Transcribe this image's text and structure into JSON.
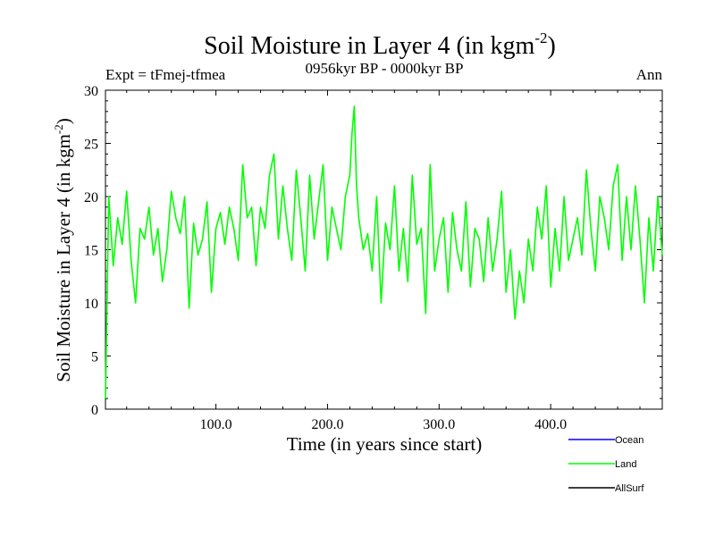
{
  "chart_data": {
    "type": "line",
    "title": "Soil Moisture in Layer 4 (in kgm",
    "title_sup": "-2",
    "title_close": ")",
    "subtitle": "0956kyr BP - 0000kyr BP",
    "expt_label": "Expt = tFmej-tfmea",
    "season_label": "Ann",
    "xlabel": "Time (in years since start)",
    "ylabel": "Soil Moisture in Layer 4 (in kgm",
    "ylabel_sup": "-2",
    "ylabel_close": ")",
    "xlim": [
      1,
      500
    ],
    "ylim": [
      0,
      30
    ],
    "x_ticks": [
      {
        "value": 100,
        "label": "100.0"
      },
      {
        "value": 200,
        "label": "200.0"
      },
      {
        "value": 300,
        "label": "300.0"
      },
      {
        "value": 400,
        "label": "400.0"
      }
    ],
    "y_ticks": [
      {
        "value": 0,
        "label": "0"
      },
      {
        "value": 5,
        "label": "5"
      },
      {
        "value": 10,
        "label": "10"
      },
      {
        "value": 15,
        "label": "15"
      },
      {
        "value": 20,
        "label": "20"
      },
      {
        "value": 25,
        "label": "25"
      },
      {
        "value": 30,
        "label": "30"
      }
    ],
    "legend": [
      {
        "name": "Ocean",
        "color": "#0000ff"
      },
      {
        "name": "Land",
        "color": "#00ff00"
      },
      {
        "name": "AllSurf",
        "color": "#000000"
      }
    ],
    "series": [
      {
        "name": "Land",
        "color": "#00ff00",
        "x": [
          1,
          4,
          8,
          12,
          16,
          20,
          24,
          28,
          32,
          36,
          40,
          44,
          48,
          52,
          56,
          60,
          64,
          68,
          72,
          76,
          80,
          84,
          88,
          92,
          96,
          100,
          104,
          108,
          112,
          116,
          120,
          124,
          128,
          132,
          136,
          140,
          144,
          148,
          152,
          156,
          160,
          164,
          168,
          172,
          176,
          180,
          184,
          188,
          192,
          196,
          200,
          204,
          208,
          212,
          216,
          220,
          222,
          224,
          226,
          228,
          232,
          236,
          240,
          244,
          248,
          252,
          256,
          260,
          264,
          268,
          272,
          276,
          280,
          284,
          288,
          292,
          296,
          300,
          304,
          308,
          312,
          316,
          320,
          324,
          328,
          332,
          336,
          340,
          344,
          348,
          352,
          356,
          360,
          364,
          368,
          372,
          376,
          380,
          384,
          388,
          392,
          396,
          400,
          404,
          408,
          412,
          416,
          420,
          424,
          428,
          432,
          436,
          440,
          444,
          448,
          452,
          456,
          460,
          464,
          468,
          472,
          476,
          480,
          484,
          488,
          492,
          496,
          500
        ],
        "values": [
          1,
          20,
          13.5,
          18,
          15.5,
          20.5,
          14,
          10,
          17,
          16,
          19,
          14.5,
          17,
          12,
          15,
          20.5,
          18,
          16.5,
          20,
          9.5,
          17.5,
          14.5,
          16,
          19.5,
          11,
          17,
          18.5,
          15.5,
          19,
          17,
          14,
          23,
          18,
          19,
          13.5,
          19,
          17,
          22,
          24,
          16,
          21,
          17,
          14,
          22.5,
          18,
          13,
          22,
          16,
          19.5,
          23,
          14,
          19,
          17,
          15,
          20,
          22,
          26,
          28.5,
          21,
          18,
          15,
          16.5,
          13,
          20,
          10,
          17.5,
          15,
          21,
          13,
          17,
          12,
          22,
          15.5,
          17,
          9,
          23,
          13,
          16,
          18,
          11,
          18.5,
          15,
          13,
          19.5,
          11.5,
          17,
          16,
          12,
          18,
          13,
          16,
          20.5,
          11,
          15,
          8.5,
          13,
          10,
          16,
          13,
          19,
          16,
          21,
          11.5,
          17,
          13,
          20,
          14,
          16,
          18,
          14.5,
          22.5,
          17,
          13,
          20,
          18,
          15,
          21,
          23,
          14,
          20,
          15,
          21,
          16,
          10,
          18,
          13,
          20,
          14.5
        ]
      }
    ]
  }
}
